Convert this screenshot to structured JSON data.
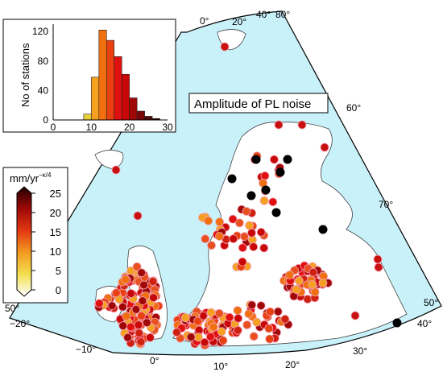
{
  "map": {
    "title": "Amplitude of PL noise",
    "lat_labels": [
      "40°",
      "50°",
      "60°",
      "70°",
      "80°",
      "50°"
    ],
    "lon_labels": [
      "0°",
      "20°",
      "40°",
      "−20°",
      "−10°",
      "0°",
      "10°",
      "20°",
      "30°",
      "40°"
    ],
    "colors": {
      "sea": "#c9f1fa",
      "land": "#ffffff",
      "border": "#000000"
    }
  },
  "histogram": {
    "ylabel": "No of stations",
    "yticks": [
      "120",
      "80",
      "40",
      "0"
    ],
    "xticks": [
      "0",
      "10",
      "20",
      "30"
    ],
    "chart_data": {
      "type": "bar",
      "bins": [
        [
          8,
          10
        ],
        [
          10,
          12
        ],
        [
          12,
          14
        ],
        [
          14,
          16
        ],
        [
          16,
          18
        ],
        [
          18,
          20
        ],
        [
          20,
          22
        ],
        [
          22,
          24
        ],
        [
          24,
          26
        ],
        [
          26,
          28
        ]
      ],
      "values": [
        8,
        58,
        122,
        108,
        86,
        62,
        30,
        12,
        5,
        2
      ],
      "colors": [
        "#e8d038",
        "#f5a020",
        "#f07010",
        "#e84010",
        "#e01010",
        "#c80808",
        "#a00808",
        "#780808",
        "#500808",
        "#300000"
      ],
      "xlim": [
        0,
        30
      ],
      "ylim": [
        0,
        130
      ]
    }
  },
  "colorbar": {
    "unit_label": "mm/yr",
    "unit_exp": "−κ/4",
    "ticks": [
      "25",
      "20",
      "15",
      "10",
      "5",
      "0"
    ]
  }
}
